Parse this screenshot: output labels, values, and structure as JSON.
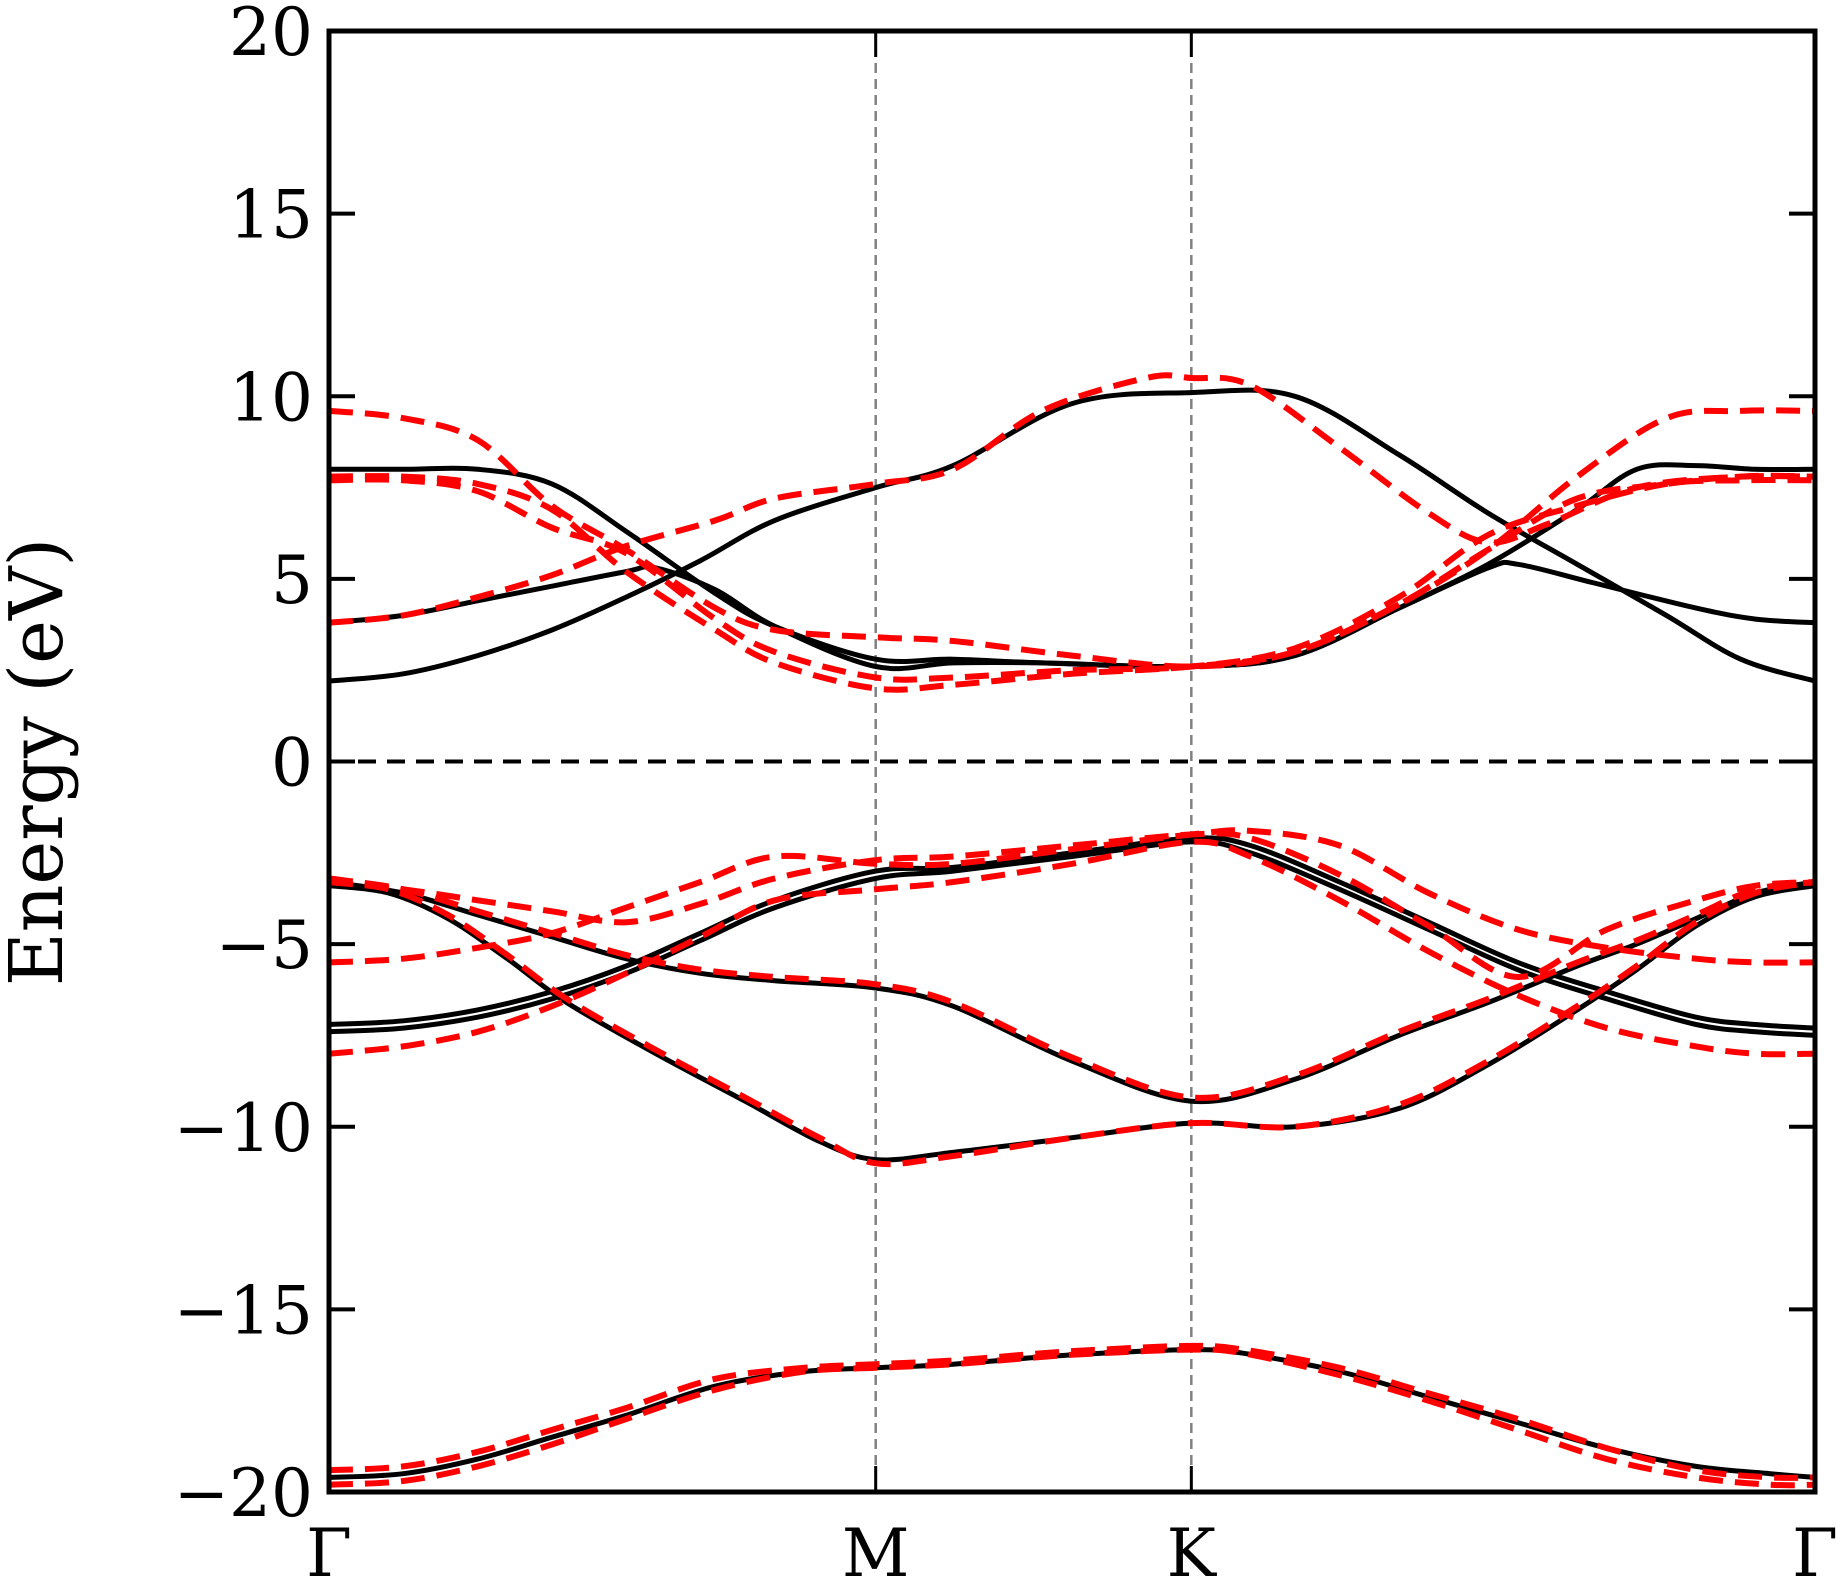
{
  "chart_data": {
    "type": "line",
    "ylabel": "Energy (eV)",
    "ylim": [
      -20,
      20
    ],
    "yticks": [
      -20,
      -15,
      -10,
      -5,
      0,
      5,
      10,
      15,
      20
    ],
    "ytick_labels": [
      "−20",
      "−15",
      "−10",
      "−5",
      "0",
      "5",
      "10",
      "15",
      "20"
    ],
    "xlim": [
      0,
      1
    ],
    "high_symmetry_points": [
      {
        "label": "Γ",
        "x": 0.0
      },
      {
        "label": "M",
        "x": 0.3679
      },
      {
        "label": "K",
        "x": 0.5803
      },
      {
        "label": "Γ",
        "x": 1.0
      }
    ],
    "fermi_level": 0,
    "colors": {
      "series_a": "#000000",
      "series_b": "#ff0000",
      "guides": "#808080"
    },
    "series": [
      {
        "style": "solid",
        "color": "#000000",
        "bands": [
          {
            "x": [
              0,
              0.05,
              0.1,
              0.15,
              0.2,
              0.26,
              0.32,
              0.3679,
              0.42,
              0.48,
              0.52,
              0.5803,
              0.615,
              0.68,
              0.74,
              0.8,
              0.86,
              0.92,
              0.97,
              1.0
            ],
            "y": [
              -19.6,
              -19.5,
              -19.1,
              -18.5,
              -17.9,
              -17.1,
              -16.7,
              -16.6,
              -16.5,
              -16.3,
              -16.2,
              -16.1,
              -16.2,
              -16.7,
              -17.4,
              -18.1,
              -18.8,
              -19.3,
              -19.5,
              -19.6
            ]
          },
          {
            "x": [
              0,
              0.04,
              0.08,
              0.12,
              0.16,
              0.22,
              0.28,
              0.33,
              0.3679,
              0.42,
              0.5,
              0.5803,
              0.65,
              0.72,
              0.78,
              0.84,
              0.88,
              0.92,
              0.96,
              1.0
            ],
            "y": [
              -3.4,
              -3.6,
              -4.3,
              -5.4,
              -6.6,
              -8.0,
              -9.3,
              -10.4,
              -10.9,
              -10.7,
              -10.3,
              -9.9,
              -10.0,
              -9.5,
              -8.3,
              -6.8,
              -5.7,
              -4.5,
              -3.7,
              -3.4
            ]
          },
          {
            "x": [
              0,
              0.05,
              0.1,
              0.15,
              0.2,
              0.25,
              0.3,
              0.3679,
              0.42,
              0.5,
              0.5803,
              0.65,
              0.72,
              0.78,
              0.84,
              0.88,
              0.92,
              0.96,
              1.0
            ],
            "y": [
              -3.3,
              -3.6,
              -4.2,
              -4.8,
              -5.4,
              -5.8,
              -6.0,
              -6.2,
              -6.7,
              -8.2,
              -9.3,
              -8.7,
              -7.5,
              -6.6,
              -5.6,
              -5.0,
              -4.3,
              -3.6,
              -3.3
            ]
          },
          {
            "x": [
              0,
              0.05,
              0.1,
              0.15,
              0.2,
              0.25,
              0.3,
              0.3679,
              0.42,
              0.5,
              0.5803,
              0.62,
              0.68,
              0.74,
              0.8,
              0.86,
              0.92,
              0.96,
              1.0
            ],
            "y": [
              -7.2,
              -7.1,
              -6.8,
              -6.3,
              -5.6,
              -4.7,
              -3.8,
              -3.0,
              -2.9,
              -2.5,
              -2.1,
              -2.3,
              -3.3,
              -4.4,
              -5.5,
              -6.3,
              -7.0,
              -7.2,
              -7.3
            ]
          },
          {
            "x": [
              0,
              0.05,
              0.1,
              0.15,
              0.2,
              0.25,
              0.3,
              0.3679,
              0.42,
              0.5,
              0.5803,
              0.62,
              0.68,
              0.74,
              0.8,
              0.86,
              0.92,
              0.96,
              1.0
            ],
            "y": [
              -7.4,
              -7.3,
              -7.0,
              -6.5,
              -5.8,
              -4.9,
              -4.0,
              -3.2,
              -3.0,
              -2.6,
              -2.2,
              -2.5,
              -3.5,
              -4.6,
              -5.7,
              -6.5,
              -7.2,
              -7.4,
              -7.5
            ]
          },
          {
            "x": [
              0,
              0.05,
              0.1,
              0.15,
              0.2,
              0.25,
              0.3,
              0.3679,
              0.42,
              0.5,
              0.5803,
              0.65,
              0.72,
              0.78,
              0.84,
              0.9,
              0.95,
              1.0
            ],
            "y": [
              2.2,
              2.4,
              2.9,
              3.6,
              4.5,
              5.5,
              6.6,
              7.5,
              8.1,
              9.8,
              10.1,
              10.0,
              8.4,
              6.8,
              5.4,
              4.0,
              2.8,
              2.2
            ]
          },
          {
            "x": [
              0,
              0.05,
              0.1,
              0.15,
              0.2,
              0.22,
              0.26,
              0.3,
              0.3679,
              0.42,
              0.48,
              0.5803,
              0.65,
              0.72,
              0.78,
              0.8,
              0.85,
              0.92,
              0.96,
              1.0
            ],
            "y": [
              3.8,
              4.0,
              4.4,
              4.8,
              5.2,
              5.3,
              4.7,
              3.7,
              2.6,
              2.7,
              2.7,
              2.6,
              2.9,
              4.2,
              5.3,
              5.4,
              4.9,
              4.2,
              3.9,
              3.8
            ]
          },
          {
            "x": [
              0,
              0.05,
              0.1,
              0.15,
              0.2,
              0.26,
              0.3,
              0.3679,
              0.42,
              0.48,
              0.5803,
              0.65,
              0.72,
              0.78,
              0.84,
              0.88,
              0.92,
              0.96,
              1.0
            ],
            "y": [
              8.0,
              8.0,
              8.0,
              7.6,
              6.3,
              4.6,
              3.7,
              2.8,
              2.8,
              2.7,
              2.6,
              2.9,
              4.2,
              5.4,
              6.9,
              8.0,
              8.1,
              8.0,
              8.0
            ]
          }
        ]
      },
      {
        "style": "dashed",
        "color": "#ff0000",
        "bands": [
          {
            "x": [
              0,
              0.05,
              0.1,
              0.15,
              0.2,
              0.26,
              0.32,
              0.3679,
              0.42,
              0.48,
              0.52,
              0.5803,
              0.615,
              0.68,
              0.74,
              0.8,
              0.86,
              0.92,
              0.97,
              1.0
            ],
            "y": [
              -19.4,
              -19.3,
              -18.9,
              -18.3,
              -17.7,
              -16.9,
              -16.6,
              -16.5,
              -16.4,
              -16.2,
              -16.1,
              -16.0,
              -16.1,
              -16.6,
              -17.3,
              -18.0,
              -18.8,
              -19.4,
              -19.6,
              -19.6
            ]
          },
          {
            "x": [
              0,
              0.05,
              0.1,
              0.15,
              0.2,
              0.26,
              0.32,
              0.3679,
              0.42,
              0.48,
              0.52,
              0.5803,
              0.615,
              0.68,
              0.74,
              0.8,
              0.86,
              0.92,
              0.97,
              1.0
            ],
            "y": [
              -19.8,
              -19.7,
              -19.3,
              -18.7,
              -18.0,
              -17.2,
              -16.7,
              -16.6,
              -16.5,
              -16.3,
              -16.2,
              -16.1,
              -16.2,
              -16.8,
              -17.5,
              -18.3,
              -19.1,
              -19.6,
              -19.8,
              -19.8
            ]
          },
          {
            "x": [
              0,
              0.04,
              0.08,
              0.12,
              0.16,
              0.22,
              0.28,
              0.33,
              0.3679,
              0.42,
              0.5,
              0.5803,
              0.65,
              0.72,
              0.78,
              0.84,
              0.88,
              0.92,
              0.96,
              1.0
            ],
            "y": [
              -3.3,
              -3.5,
              -4.2,
              -5.3,
              -6.5,
              -7.9,
              -9.2,
              -10.3,
              -11.0,
              -10.8,
              -10.3,
              -9.9,
              -10.0,
              -9.4,
              -8.2,
              -6.7,
              -5.6,
              -4.4,
              -3.6,
              -3.3
            ]
          },
          {
            "x": [
              0,
              0.05,
              0.1,
              0.15,
              0.2,
              0.25,
              0.3,
              0.3679,
              0.42,
              0.5,
              0.5803,
              0.65,
              0.72,
              0.78,
              0.84,
              0.88,
              0.92,
              0.96,
              1.0
            ],
            "y": [
              -3.2,
              -3.5,
              -4.1,
              -4.7,
              -5.3,
              -5.7,
              -5.9,
              -6.1,
              -6.6,
              -8.1,
              -9.2,
              -8.6,
              -7.4,
              -6.5,
              -5.5,
              -4.9,
              -4.2,
              -3.5,
              -3.3
            ]
          },
          {
            "x": [
              0,
              0.05,
              0.1,
              0.15,
              0.2,
              0.25,
              0.3,
              0.3679,
              0.42,
              0.5,
              0.5803,
              0.62,
              0.68,
              0.74,
              0.8,
              0.86,
              0.92,
              0.96,
              1.0
            ],
            "y": [
              -8.0,
              -7.8,
              -7.4,
              -6.7,
              -5.8,
              -4.8,
              -3.8,
              -3.5,
              -3.3,
              -2.8,
              -2.2,
              -2.6,
              -3.8,
              -5.2,
              -6.4,
              -7.3,
              -7.8,
              -8.0,
              -8.0
            ]
          },
          {
            "x": [
              0,
              0.05,
              0.1,
              0.15,
              0.2,
              0.25,
              0.3,
              0.3679,
              0.42,
              0.5,
              0.5803,
              0.62,
              0.68,
              0.74,
              0.8,
              0.86,
              0.92,
              0.96,
              1.0
            ],
            "y": [
              -5.5,
              -5.4,
              -5.1,
              -4.7,
              -4.0,
              -3.3,
              -2.6,
              -2.8,
              -2.8,
              -2.4,
              -2.0,
              -1.9,
              -2.3,
              -3.6,
              -4.6,
              -5.1,
              -5.4,
              -5.5,
              -5.5
            ]
          },
          {
            "x": [
              0,
              0.05,
              0.1,
              0.15,
              0.2,
              0.25,
              0.3,
              0.3679,
              0.42,
              0.5,
              0.5803,
              0.62,
              0.68,
              0.74,
              0.8,
              0.86,
              0.92,
              0.96,
              1.0
            ],
            "y": [
              -3.3,
              -3.5,
              -3.8,
              -4.1,
              -4.4,
              -3.9,
              -3.2,
              -2.7,
              -2.6,
              -2.3,
              -2.0,
              -2.1,
              -3.1,
              -4.5,
              -5.9,
              -4.6,
              -3.8,
              -3.4,
              -3.3
            ]
          },
          {
            "x": [
              0,
              0.05,
              0.1,
              0.15,
              0.2,
              0.26,
              0.3,
              0.3679,
              0.42,
              0.48,
              0.55,
              0.5803,
              0.62,
              0.68,
              0.74,
              0.78,
              0.82,
              0.88,
              0.95,
              1.0
            ],
            "y": [
              3.8,
              4.0,
              4.5,
              5.1,
              5.9,
              6.6,
              7.2,
              7.6,
              8.0,
              9.6,
              10.5,
              10.5,
              10.3,
              8.6,
              6.8,
              6.0,
              6.5,
              7.5,
              7.8,
              7.8
            ]
          },
          {
            "x": [
              0,
              0.05,
              0.1,
              0.15,
              0.2,
              0.26,
              0.3,
              0.3679,
              0.42,
              0.5,
              0.5803,
              0.65,
              0.72,
              0.78,
              0.84,
              0.9,
              0.95,
              1.0
            ],
            "y": [
              9.6,
              9.4,
              8.8,
              7.0,
              5.8,
              4.2,
              3.6,
              3.4,
              3.3,
              2.9,
              2.6,
              3.0,
              4.3,
              5.8,
              7.8,
              9.4,
              9.6,
              9.6
            ]
          },
          {
            "x": [
              0,
              0.05,
              0.1,
              0.15,
              0.2,
              0.26,
              0.3,
              0.3679,
              0.42,
              0.5,
              0.5803,
              0.65,
              0.72,
              0.78,
              0.84,
              0.9,
              0.95,
              1.0
            ],
            "y": [
              7.8,
              7.8,
              7.6,
              6.9,
              5.2,
              3.6,
              2.7,
              2.0,
              2.1,
              2.4,
              2.6,
              3.0,
              4.3,
              5.8,
              7.2,
              7.6,
              7.8,
              7.8
            ]
          },
          {
            "x": [
              0,
              0.05,
              0.1,
              0.15,
              0.2,
              0.26,
              0.3,
              0.3679,
              0.42,
              0.5,
              0.5803,
              0.65,
              0.72,
              0.78,
              0.84,
              0.9,
              0.95,
              1.0
            ],
            "y": [
              7.7,
              7.7,
              7.4,
              6.4,
              5.7,
              3.9,
              3.0,
              2.3,
              2.3,
              2.5,
              2.6,
              3.1,
              4.5,
              6.2,
              7.0,
              7.6,
              7.7,
              7.7
            ]
          }
        ]
      }
    ]
  }
}
